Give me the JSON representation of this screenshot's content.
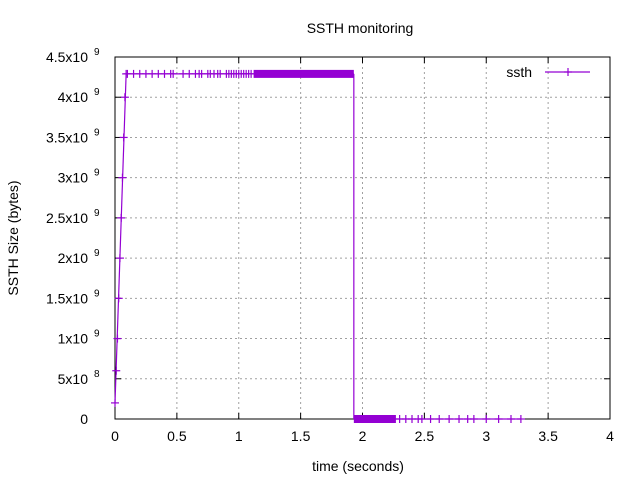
{
  "chart_data": {
    "type": "line",
    "title": "SSTH monitoring",
    "xlabel": "time (seconds)",
    "ylabel": "SSTH Size (bytes)",
    "xlim": [
      0,
      4
    ],
    "ylim": [
      0,
      4500000000
    ],
    "x_ticks": [
      {
        "value": 0,
        "label": "0"
      },
      {
        "value": 0.5,
        "label": "0.5"
      },
      {
        "value": 1,
        "label": "1"
      },
      {
        "value": 1.5,
        "label": "1.5"
      },
      {
        "value": 2,
        "label": "2"
      },
      {
        "value": 2.5,
        "label": "2.5"
      },
      {
        "value": 3,
        "label": "3"
      },
      {
        "value": 3.5,
        "label": "3.5"
      },
      {
        "value": 4,
        "label": "4"
      }
    ],
    "y_ticks": [
      {
        "value": 0,
        "mantissa": "0",
        "exponent": ""
      },
      {
        "value": 500000000,
        "mantissa": "5x10",
        "exponent": "8"
      },
      {
        "value": 1000000000,
        "mantissa": "1x10",
        "exponent": "9"
      },
      {
        "value": 1500000000,
        "mantissa": "1.5x10",
        "exponent": "9"
      },
      {
        "value": 2000000000,
        "mantissa": "2x10",
        "exponent": "9"
      },
      {
        "value": 2500000000,
        "mantissa": "2.5x10",
        "exponent": "9"
      },
      {
        "value": 3000000000,
        "mantissa": "3x10",
        "exponent": "9"
      },
      {
        "value": 3500000000,
        "mantissa": "3.5x10",
        "exponent": "9"
      },
      {
        "value": 4000000000,
        "mantissa": "4x10",
        "exponent": "9"
      },
      {
        "value": 4500000000,
        "mantissa": "4.5x10",
        "exponent": "9"
      }
    ],
    "grid": true,
    "legend_position": "top-right",
    "series": [
      {
        "name": "ssth",
        "color": "#9400d3",
        "marker": "plus",
        "segments": [
          {
            "from_x": 0.0,
            "to_x": 0.09,
            "from_y": 200000000,
            "to_y": 4290000000
          },
          {
            "from_x": 0.09,
            "to_x": 1.93,
            "from_y": 4290000000,
            "to_y": 4290000000
          },
          {
            "from_x": 1.93,
            "to_x": 1.93,
            "from_y": 4290000000,
            "to_y": 0
          },
          {
            "from_x": 1.93,
            "to_x": 3.28,
            "from_y": 0,
            "to_y": 0
          }
        ],
        "high_sample_times": [
          0.1,
          0.15,
          0.2,
          0.25,
          0.3,
          0.35,
          0.4,
          0.45,
          0.47,
          0.55,
          0.6,
          0.65,
          0.68,
          0.7,
          0.75,
          0.77,
          0.8,
          0.83,
          0.85,
          0.9,
          0.92,
          0.94,
          0.96,
          0.98,
          1.0,
          1.02,
          1.04,
          1.06,
          1.08,
          1.1
        ],
        "high_sample_value": 4290000000,
        "dense_high_interval": [
          1.12,
          1.93
        ],
        "low_sample_times": [
          2.3,
          2.35,
          2.4,
          2.45,
          2.48,
          2.55,
          2.62,
          2.7,
          2.78,
          2.85,
          2.9,
          3.0,
          3.1,
          3.2,
          3.28
        ],
        "low_sample_value": 0,
        "dense_low_interval": [
          1.93,
          2.27
        ],
        "ramp_samples": [
          {
            "x": 0.0,
            "y": 200000000
          },
          {
            "x": 0.01,
            "y": 600000000
          },
          {
            "x": 0.02,
            "y": 1000000000
          },
          {
            "x": 0.03,
            "y": 1500000000
          },
          {
            "x": 0.04,
            "y": 2000000000
          },
          {
            "x": 0.05,
            "y": 2500000000
          },
          {
            "x": 0.06,
            "y": 3000000000
          },
          {
            "x": 0.07,
            "y": 3500000000
          },
          {
            "x": 0.08,
            "y": 4000000000
          },
          {
            "x": 0.09,
            "y": 4290000000
          }
        ]
      }
    ]
  }
}
